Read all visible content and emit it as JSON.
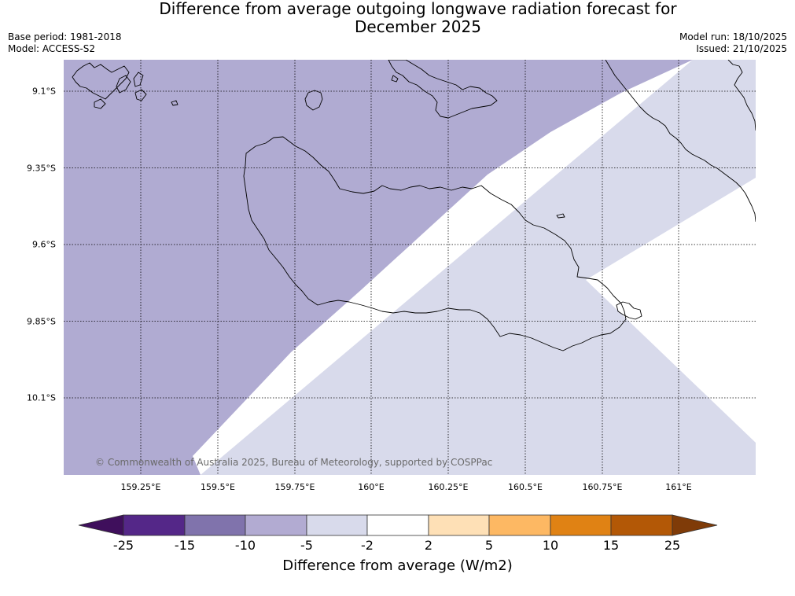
{
  "title": {
    "line1": "Difference from average outgoing longwave radiation forecast for",
    "line2": "December 2025"
  },
  "meta": {
    "base_period": "Base period: 1981-2018",
    "model": "Model: ACCESS-S2",
    "model_run": "Model run: 18/10/2025",
    "issued": "Issued: 21/10/2025"
  },
  "map": {
    "copyright": "© Commonwealth of Australia 2025, Bureau of Meteorology, supported by COSPPac",
    "lat_labels": [
      "9.1°S",
      "9.35°S",
      "9.6°S",
      "9.85°S",
      "10.1°S"
    ],
    "lon_labels": [
      "159.25°E",
      "159.5°E",
      "159.75°E",
      "160°E",
      "160.25°E",
      "160.5°E",
      "160.75°E",
      "161°E"
    ],
    "region_categories": [
      "-10 to -5",
      "-5 to -2",
      "-2 to 2"
    ]
  },
  "colorbar": {
    "ticks": [
      "-25",
      "-15",
      "-10",
      "-5",
      "-2",
      "2",
      "5",
      "10",
      "15",
      "25"
    ],
    "colors": [
      "#3f0f5c",
      "#542788",
      "#8073ac",
      "#b2abd2",
      "#d8daeb",
      "#ffffff",
      "#fee0b6",
      "#fdb863",
      "#e08214",
      "#b35806",
      "#7f3b08"
    ],
    "label": "Difference from average (W/m2)"
  }
}
